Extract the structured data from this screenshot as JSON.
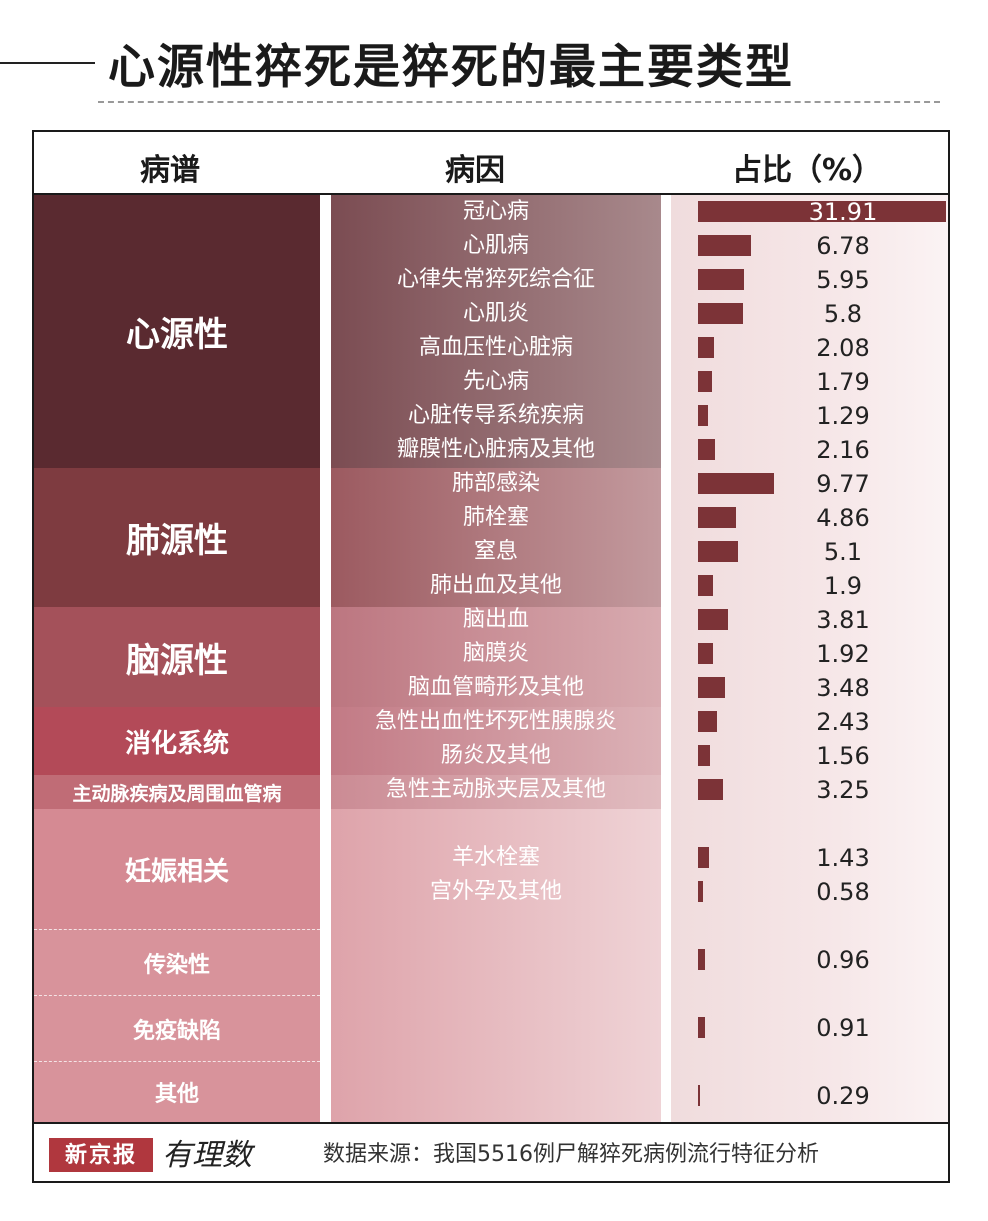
{
  "title": "心源性猝死是猝死的最主要类型",
  "headers": {
    "category": "病谱",
    "cause": "病因",
    "share": "占比（%）"
  },
  "groups": [
    {
      "label": "心源性"
    },
    {
      "label": "肺源性"
    },
    {
      "label": "脑源性"
    },
    {
      "label": "消化系统"
    },
    {
      "label": "主动脉疾病及周围血管病"
    },
    {
      "label": "妊娠相关"
    },
    {
      "label": "传染性"
    },
    {
      "label": "免疫缺陷"
    },
    {
      "label": "其他"
    }
  ],
  "chart_data": {
    "type": "bar",
    "categories": [
      "冠心病",
      "心肌病",
      "心律失常猝死综合征",
      "心肌炎",
      "高血压性心脏病",
      "先心病",
      "心脏传导系统疾病",
      "瓣膜性心脏病及其他",
      "肺部感染",
      "肺栓塞",
      "窒息",
      "肺出血及其他",
      "脑出血",
      "脑膜炎",
      "脑血管畸形及其他",
      "急性出血性坏死性胰腺炎",
      "肠炎及其他",
      "急性主动脉夹层及其他",
      "羊水栓塞",
      "宫外孕及其他",
      "",
      "",
      ""
    ],
    "values": [
      31.91,
      6.78,
      5.95,
      5.8,
      2.08,
      1.79,
      1.29,
      2.16,
      9.77,
      4.86,
      5.1,
      1.9,
      3.81,
      1.92,
      3.48,
      2.43,
      1.56,
      3.25,
      1.43,
      0.58,
      0.96,
      0.91,
      0.29
    ],
    "value_labels": [
      "31.91",
      "6.78",
      "5.95",
      "5.8",
      "2.08",
      "1.79",
      "1.29",
      "2.16",
      "9.77",
      "4.86",
      "5.1",
      "1.9",
      "3.81",
      "1.92",
      "3.48",
      "2.43",
      "1.56",
      "3.25",
      "1.43",
      "0.58",
      "0.96",
      "0.91",
      "0.29"
    ],
    "xlim": [
      0,
      32
    ],
    "orientation": "horizontal",
    "bar_color": "#7c3337"
  },
  "footer": {
    "logo": "新京报",
    "logo_sub": "有理数",
    "source": "数据来源：我国5516例尸解猝死病例流行特征分析"
  }
}
